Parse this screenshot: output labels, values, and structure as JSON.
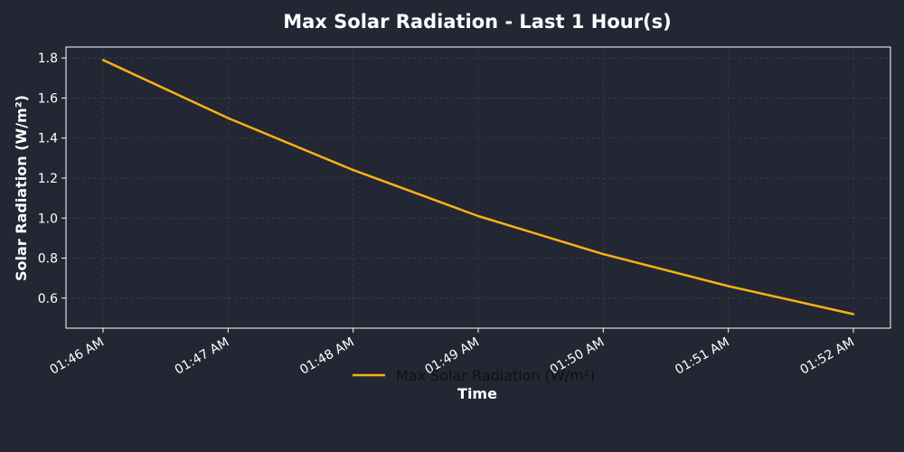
{
  "chart_data": {
    "type": "line",
    "title": "Max Solar Radiation - Last 1 Hour(s)",
    "xlabel": "Time",
    "ylabel": "Solar Radiation (W/m²)",
    "x": [
      "01:46 AM",
      "01:47 AM",
      "01:48 AM",
      "01:49 AM",
      "01:50 AM",
      "01:51 AM",
      "01:52 AM"
    ],
    "series": [
      {
        "name": "Max Solar Radiation (W/m²)",
        "values": [
          1.79,
          1.5,
          1.24,
          1.01,
          0.82,
          0.66,
          0.52
        ]
      }
    ],
    "yticks": [
      "0.6",
      "0.8",
      "1.0",
      "1.2",
      "1.4",
      "1.6",
      "1.8"
    ],
    "ylim": [
      0.45,
      1.855
    ],
    "grid": true,
    "legend_position": "bottom-center",
    "colors": {
      "background": "#222733",
      "line": "#fbb116",
      "axes": "#ffffff",
      "grid": "#3a4050",
      "text": "#ffffff",
      "legend_text": "#111111"
    }
  }
}
